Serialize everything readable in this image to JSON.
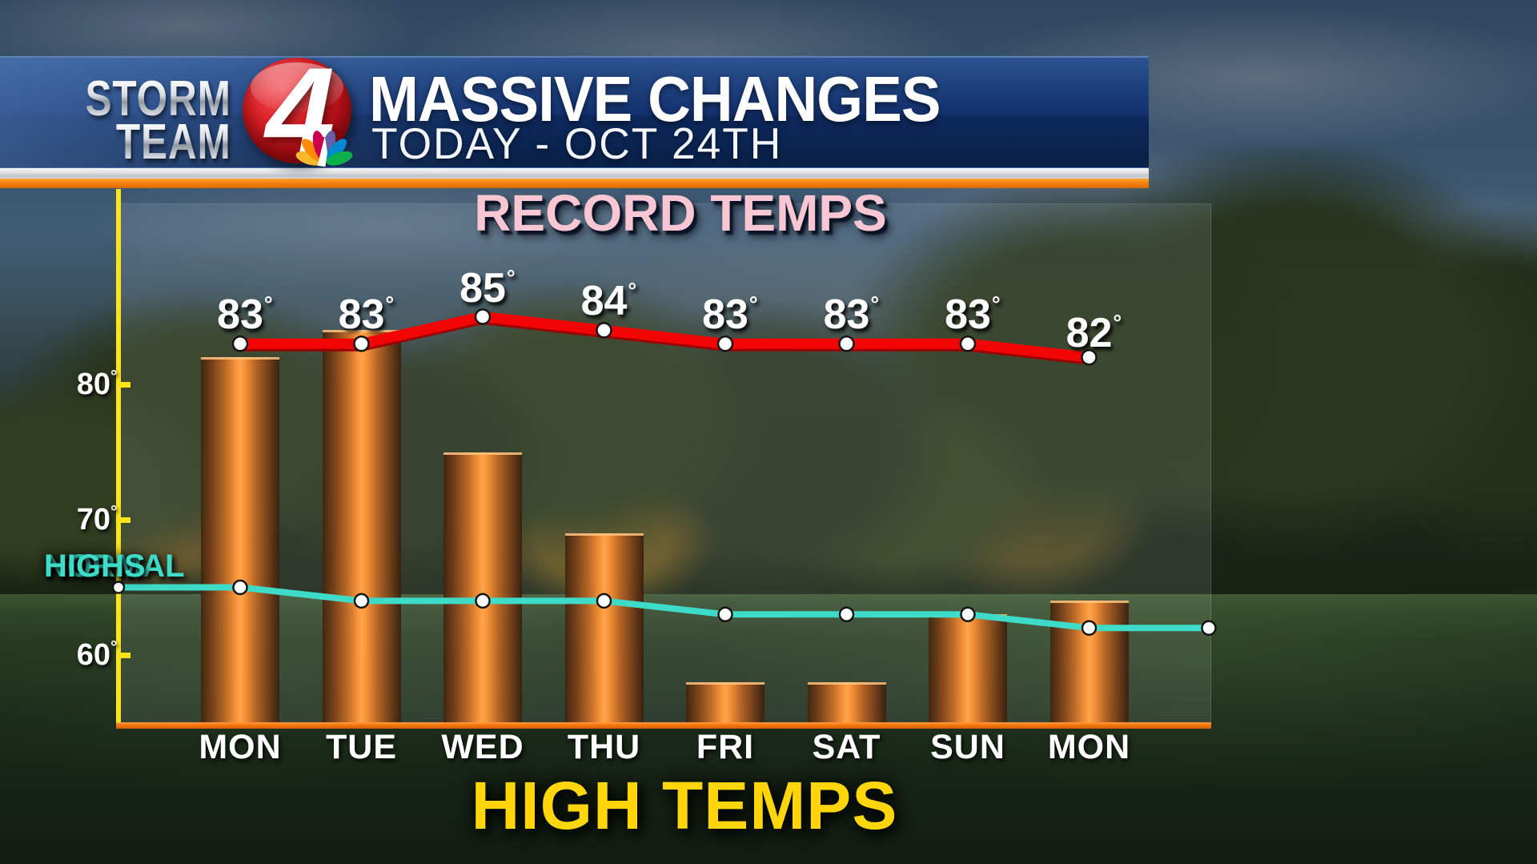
{
  "header": {
    "logo": {
      "line1": "STORM",
      "line2": "TEAM",
      "channel_number": "4",
      "network_icon": "nbc-peacock-icon"
    },
    "title": "MASSIVE CHANGES",
    "subtitle": "TODAY - OCT 24TH"
  },
  "chart": {
    "title": "RECORD TEMPS",
    "bottom_title": "HIGH TEMPS",
    "normal_highs_label": {
      "line1": "NORMAL",
      "line2": "HIGHS"
    },
    "y_axis": {
      "ticks": [
        {
          "value": 80,
          "label": "80"
        },
        {
          "value": 70,
          "label": "70"
        },
        {
          "value": 60,
          "label": "60"
        }
      ]
    }
  },
  "chart_data": {
    "type": "bar",
    "categories": [
      "MON",
      "TUE",
      "WED",
      "THU",
      "FRI",
      "SAT",
      "SUN",
      "MON"
    ],
    "series": [
      {
        "name": "HIGH TEMPS",
        "type": "bar",
        "values": [
          82,
          84,
          75,
          69,
          58,
          58,
          63,
          64
        ]
      },
      {
        "name": "RECORD TEMPS",
        "type": "line",
        "values": [
          83,
          83,
          85,
          84,
          83,
          83,
          83,
          82
        ],
        "point_labels": [
          "83",
          "83",
          "85",
          "84",
          "83",
          "83",
          "83",
          "82"
        ]
      },
      {
        "name": "NORMAL HIGHS",
        "type": "line",
        "values": [
          65,
          64,
          64,
          64,
          63,
          63,
          63,
          62
        ]
      }
    ],
    "ylim": [
      55,
      88
    ],
    "grid": false,
    "ylabel": "",
    "xlabel": ""
  },
  "colors": {
    "record_line": "#f30505",
    "record_line_shadow": "#9c0000",
    "normal_line": "#3edcc8",
    "dot_fill": "#ffffff",
    "dot_stroke": "#141414",
    "axis_yellow": "#ffe41a",
    "baseline_orange": "#f4760c",
    "record_title_pink": "#f9c7d3",
    "high_title_yellow": "#ffd60a"
  }
}
